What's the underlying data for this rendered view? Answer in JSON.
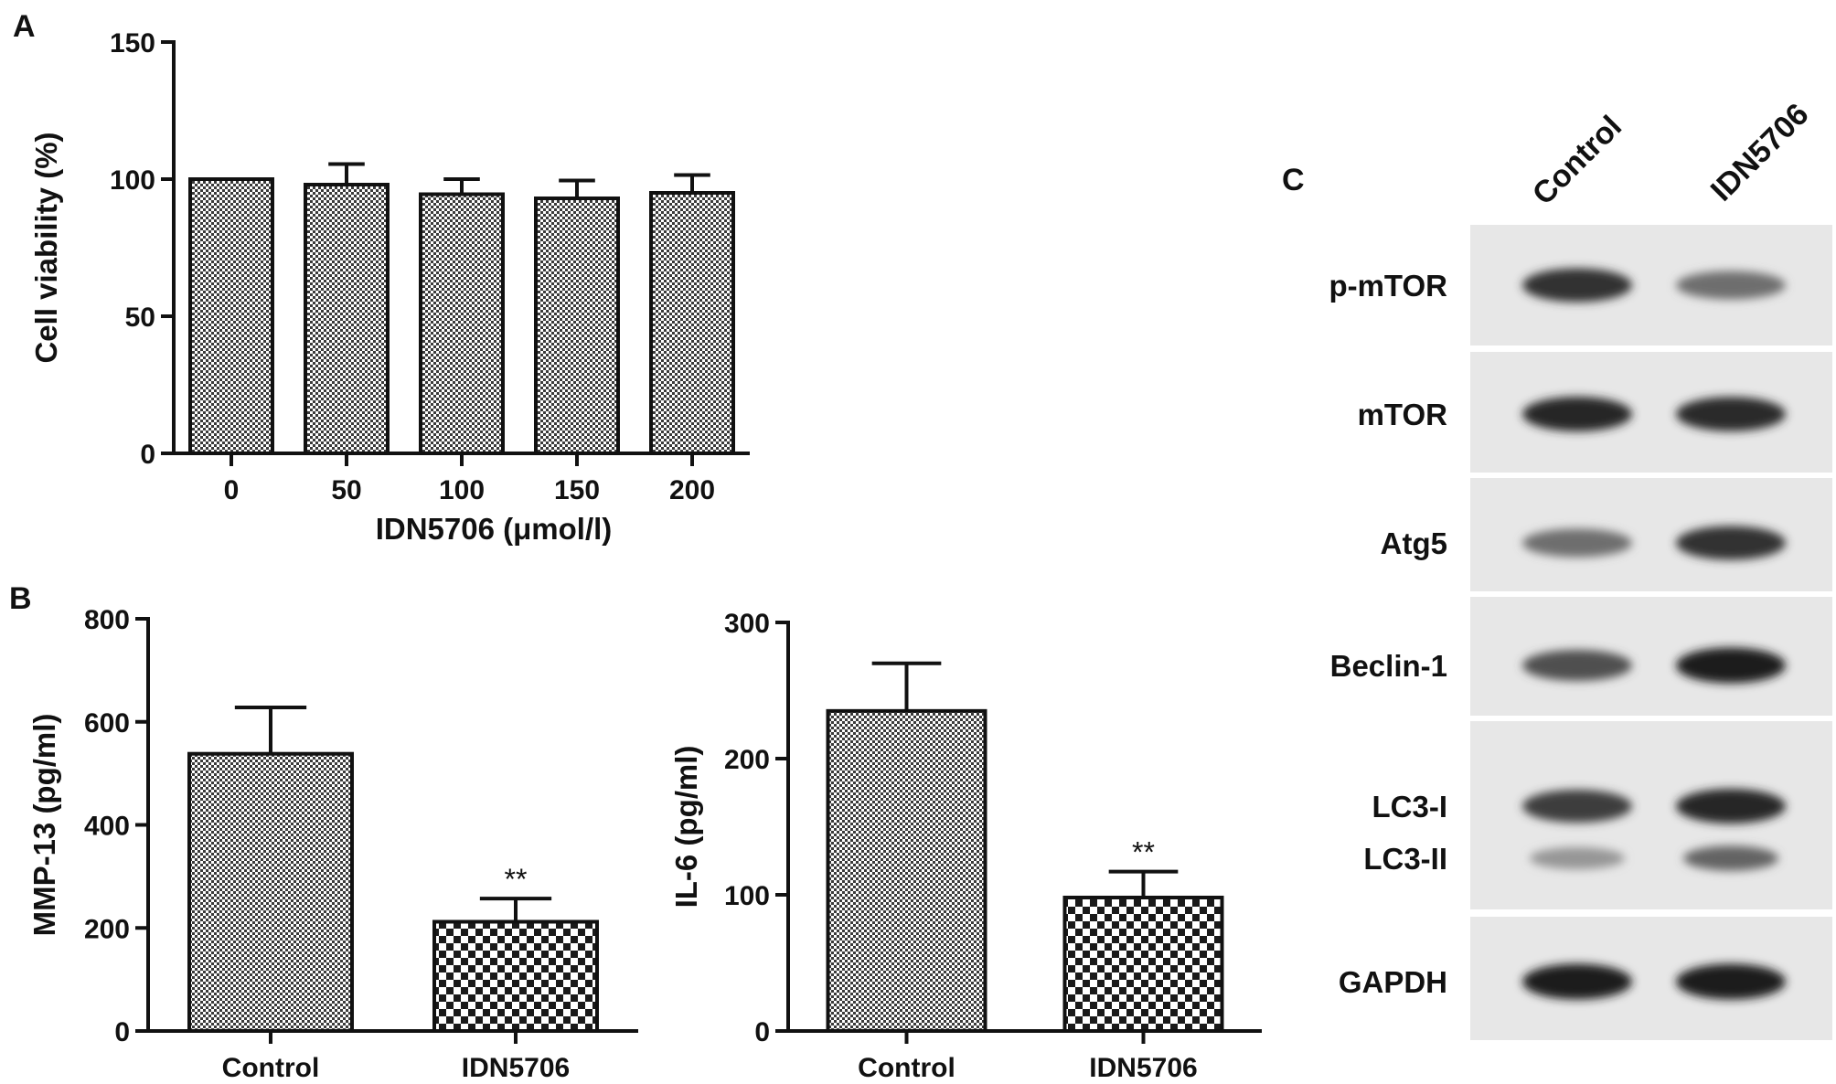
{
  "panels": {
    "A": "A",
    "B": "B",
    "C": "C"
  },
  "chart_data": [
    {
      "id": "A",
      "type": "bar",
      "categories": [
        "0",
        "50",
        "100",
        "150",
        "200"
      ],
      "values": [
        100,
        98,
        94.5,
        93,
        95
      ],
      "errors": [
        0,
        7.5,
        5.5,
        6.5,
        6.5
      ],
      "xlabel": "IDN5706 (μmol/l)",
      "ylabel": "Cell viability (%)",
      "ylim": [
        0,
        150
      ],
      "yticks": [
        0,
        50,
        100,
        150
      ],
      "colors": {
        "fill_pattern": "#9a9a9a",
        "stroke": "#111111"
      }
    },
    {
      "id": "B1",
      "type": "bar",
      "categories": [
        "Control",
        "IDN5706"
      ],
      "values": [
        538,
        212
      ],
      "errors": [
        90,
        45
      ],
      "significance": [
        "",
        "**"
      ],
      "xlabel": "",
      "ylabel": "MMP-13 (pg/ml)",
      "ylim": [
        0,
        800
      ],
      "yticks": [
        0,
        200,
        400,
        600,
        800
      ]
    },
    {
      "id": "B2",
      "type": "bar",
      "categories": [
        "Control",
        "IDN5706"
      ],
      "values": [
        235,
        98
      ],
      "errors": [
        35,
        19
      ],
      "significance": [
        "",
        "**"
      ],
      "xlabel": "",
      "ylabel": "IL-6 (pg/ml)",
      "ylim": [
        0,
        300
      ],
      "yticks": [
        0,
        100,
        200,
        300
      ]
    }
  ],
  "western_blot": {
    "lanes": [
      "Control",
      "IDN5706"
    ],
    "bands": [
      "p-mTOR",
      "mTOR",
      "Atg5",
      "Beclin-1",
      "LC3-I",
      "LC3-II",
      "GAPDH"
    ],
    "relative_intensity": {
      "p-mTOR": [
        0.85,
        0.55
      ],
      "mTOR": [
        0.9,
        0.88
      ],
      "Atg5": [
        0.55,
        0.85
      ],
      "Beclin-1": [
        0.7,
        0.95
      ],
      "LC3-I": [
        0.8,
        0.9
      ],
      "LC3-II": [
        0.35,
        0.6
      ],
      "GAPDH": [
        0.95,
        0.95
      ]
    }
  }
}
